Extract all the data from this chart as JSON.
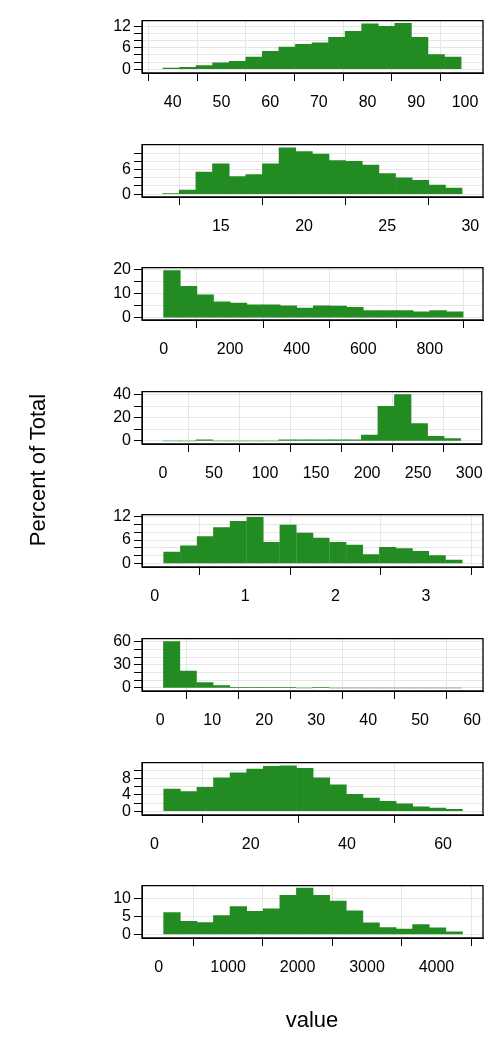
{
  "chart_data": [
    {
      "type": "histogram",
      "color": "#228b22",
      "grid": true,
      "bins": [
        38,
        41.4,
        44.8,
        48.2,
        51.6,
        55,
        58.4,
        61.8,
        65.2,
        68.6,
        72,
        75.4,
        78.8,
        82.2,
        85.6,
        89,
        92.4,
        95.8,
        99.2
      ],
      "values": [
        0.3,
        0.5,
        1.0,
        1.8,
        2.2,
        3.4,
        5.0,
        6.2,
        7.0,
        7.4,
        9.0,
        10.7,
        12.8,
        12.1,
        12.9,
        9.0,
        4.1,
        3.4
      ],
      "xlim": [
        33.7,
        103.7
      ],
      "xticks": [
        40,
        50,
        60,
        70,
        80,
        90,
        100
      ],
      "ylim": [
        -1.1,
        13.7
      ],
      "yticks": [
        0,
        {
          "value": 2,
          "label": null
        },
        {
          "value": 4,
          "label": null
        },
        6,
        {
          "value": 8,
          "label": null
        },
        {
          "value": 10,
          "label": null
        },
        12
      ]
    },
    {
      "type": "histogram",
      "color": "#228b22",
      "grid": true,
      "bins": [
        11.5,
        12.5,
        13.5,
        14.5,
        15.5,
        16.5,
        17.5,
        18.5,
        19.5,
        20.5,
        21.5,
        22.5,
        23.5,
        24.5,
        25.5,
        26.5,
        27.5,
        28.5,
        29.5
      ],
      "values": [
        0.1,
        1.0,
        5.4,
        7.4,
        4.3,
        4.8,
        7.4,
        11.3,
        10.4,
        9.8,
        8.2,
        8.0,
        7.1,
        5.0,
        4.0,
        3.4,
        2.2,
        1.5
      ],
      "xlim": [
        10.26,
        30.76
      ],
      "xticks": [
        15,
        20,
        25,
        30
      ],
      "ylim": [
        -0.7,
        12.1
      ],
      "yticks": [
        0,
        {
          "value": 2,
          "label": null
        },
        {
          "value": 4,
          "label": null
        },
        6,
        {
          "value": 8,
          "label": null
        },
        {
          "value": 10,
          "label": null
        }
      ]
    },
    {
      "type": "histogram",
      "color": "#228b22",
      "grid": true,
      "bins": [
        0,
        50,
        100,
        150,
        200,
        250,
        300,
        350,
        400,
        450,
        500,
        550,
        600,
        650,
        700,
        750,
        800,
        850,
        900
      ],
      "values": [
        19.8,
        13.1,
        9.6,
        6.6,
        6.1,
        5.4,
        5.4,
        5.0,
        4.0,
        5.0,
        4.8,
        4.3,
        3.0,
        3.0,
        3.0,
        2.4,
        3.0,
        2.4
      ],
      "xlim": [
        -65,
        960
      ],
      "xticks": [
        0,
        200,
        400,
        600,
        800
      ],
      "ylim": [
        -1,
        21
      ],
      "yticks": [
        0,
        {
          "value": 5,
          "label": null
        },
        10,
        {
          "value": 15,
          "label": null
        },
        20
      ]
    },
    {
      "type": "histogram",
      "ylabel": "Percent of Total",
      "color": "#228b22",
      "grid": true,
      "bins": [
        0,
        16.2,
        32.4,
        48.6,
        64.8,
        81,
        97.2,
        113.4,
        129.6,
        145.8,
        162,
        178.2,
        194.4,
        210.6,
        226.8,
        243,
        259.2,
        275.4,
        291.6
      ],
      "values": [
        0,
        0,
        1,
        0,
        0,
        0,
        0,
        1,
        1,
        1,
        1,
        1,
        5,
        30,
        40,
        15,
        4,
        2
      ],
      "xlim": [
        -20.5,
        312.3
      ],
      "xticks": [
        0,
        50,
        100,
        150,
        200,
        250,
        300
      ],
      "ylim": [
        -2.6,
        42.6
      ],
      "yticks": [
        0,
        {
          "value": 10,
          "label": null
        },
        20,
        {
          "value": 30,
          "label": null
        },
        40
      ]
    },
    {
      "type": "histogram",
      "color": "#228b22",
      "grid": true,
      "bins": [
        0.1,
        0.28,
        0.47,
        0.65,
        0.83,
        1.02,
        1.2,
        1.38,
        1.57,
        1.75,
        1.93,
        2.12,
        2.3,
        2.48,
        2.67,
        2.85,
        3.03,
        3.22,
        3.4
      ],
      "values": [
        2.9,
        4.5,
        6.9,
        9.2,
        10.8,
        11.8,
        5.4,
        9.8,
        7.8,
        6.5,
        5.4,
        4.7,
        2.3,
        4.1,
        3.8,
        3.1,
        2.0,
        0.9
      ],
      "xlim": [
        -0.14,
        3.63
      ],
      "xticks": [
        0,
        1,
        2,
        3
      ],
      "ylim": [
        -0.9,
        12.5
      ],
      "yticks": [
        0,
        {
          "value": 2,
          "label": null
        },
        {
          "value": 4,
          "label": null
        },
        6,
        {
          "value": 8,
          "label": null
        },
        {
          "value": 10,
          "label": null
        },
        12
      ]
    },
    {
      "type": "histogram",
      "color": "#228b22",
      "grid": true,
      "bins": [
        0.6,
        3.8,
        7.0,
        10.2,
        13.4,
        16.6,
        19.7,
        22.9,
        26.1,
        29.3,
        32.5,
        35.7,
        38.9,
        42.1,
        45.3,
        48.5,
        51.6,
        54.8,
        58.0
      ],
      "values": [
        60,
        22,
        7,
        3,
        1,
        1,
        1,
        1,
        0,
        1,
        0,
        0,
        0,
        0,
        0,
        0,
        0,
        0
      ],
      "xlim": [
        -3.5,
        62.1
      ],
      "xticks": [
        0,
        10,
        20,
        30,
        40,
        50,
        60
      ],
      "ylim": [
        -3.9,
        64
      ],
      "yticks": [
        0,
        {
          "value": 10,
          "label": null
        },
        {
          "value": 20,
          "label": null
        },
        30,
        {
          "value": 40,
          "label": null
        },
        {
          "value": 50,
          "label": null
        },
        60
      ]
    },
    {
      "type": "histogram",
      "color": "#228b22",
      "grid": true,
      "bins": [
        1.9,
        5.4,
        8.8,
        12.3,
        15.7,
        19.2,
        22.6,
        26.1,
        29.5,
        33.0,
        36.4,
        39.9,
        43.3,
        46.8,
        50.2,
        53.7,
        57.1,
        60.6,
        64.0
      ],
      "values": [
        5.4,
        4.8,
        5.8,
        8.1,
        9.3,
        10.2,
        10.9,
        11.0,
        10.4,
        8.1,
        6.4,
        4.1,
        3.2,
        2.4,
        1.8,
        1.1,
        0.8,
        0.5
      ],
      "xlim": [
        -2.6,
        68.3
      ],
      "xticks": [
        0,
        20,
        40,
        60
      ],
      "ylim": [
        -0.9,
        11.8
      ],
      "yticks": [
        0,
        {
          "value": 2,
          "label": null
        },
        4,
        {
          "value": 6,
          "label": null
        },
        8,
        {
          "value": 10,
          "label": null
        }
      ]
    },
    {
      "type": "histogram",
      "xlabel": "value",
      "color": "#228b22",
      "grid": true,
      "bins": [
        72,
        311,
        550,
        789,
        1028,
        1267,
        1506,
        1745,
        1984,
        2223,
        2462,
        2701,
        2940,
        3179,
        3418,
        3657,
        3896,
        4135,
        4374
      ],
      "values": [
        6.0,
        3.6,
        3.3,
        5.2,
        7.7,
        6.4,
        7.1,
        10.8,
        12.8,
        10.8,
        9.2,
        6.5,
        3.2,
        1.9,
        1.5,
        2.7,
        1.8,
        0.7
      ],
      "xlim": [
        -240,
        4670
      ],
      "xticks": [
        0,
        1000,
        2000,
        3000,
        4000
      ],
      "ylim": [
        -1,
        13.5
      ],
      "yticks": [
        0,
        5,
        10
      ]
    }
  ]
}
